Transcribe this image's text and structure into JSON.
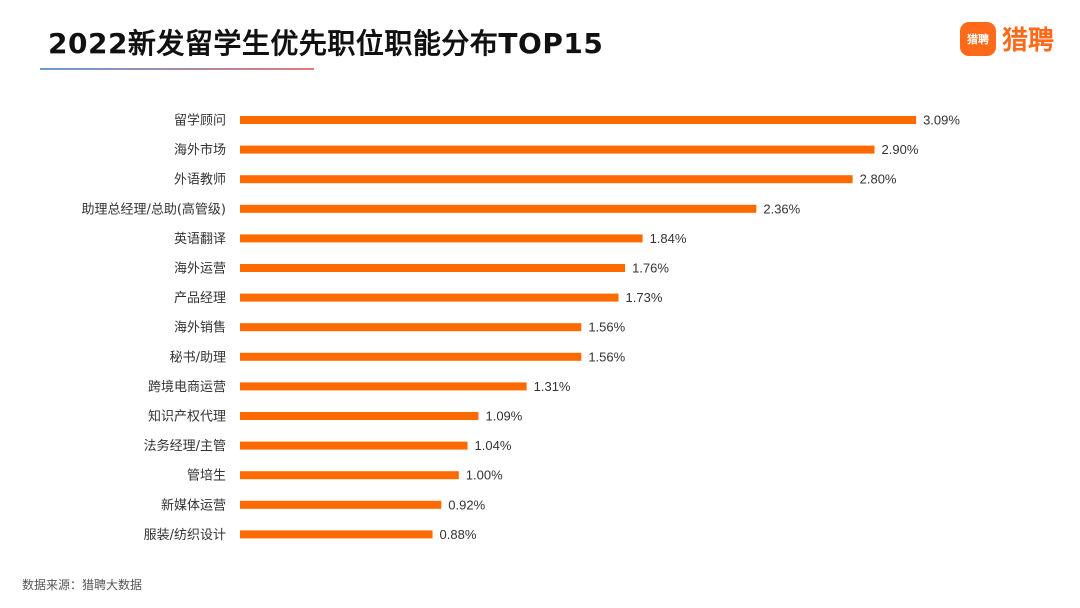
{
  "header": {
    "title": "2022新发留学生优先职位职能分布TOP15",
    "logo_icon_text": "猎聘",
    "logo_text": "猎聘"
  },
  "footer": {
    "source": "数据来源：猎聘大数据"
  },
  "colors": {
    "bar": "#ff6a00",
    "brand": "#ff6a1a"
  },
  "chart_data": {
    "type": "bar",
    "orientation": "horizontal",
    "categories": [
      "留学顾问",
      "海外市场",
      "外语教师",
      "助理总经理/总助(高管级)",
      "英语翻译",
      "海外运营",
      "产品经理",
      "海外销售",
      "秘书/助理",
      "跨境电商运营",
      "知识产权代理",
      "法务经理/主管",
      "管培生",
      "新媒体运营",
      "服装/纺织设计"
    ],
    "values": [
      3.09,
      2.9,
      2.8,
      2.36,
      1.84,
      1.76,
      1.73,
      1.56,
      1.56,
      1.31,
      1.09,
      1.04,
      1.0,
      0.92,
      0.88
    ],
    "value_labels": [
      "3.09%",
      "2.90%",
      "2.80%",
      "2.36%",
      "1.84%",
      "1.76%",
      "1.73%",
      "1.56%",
      "1.56%",
      "1.31%",
      "1.09%",
      "1.04%",
      "1.00%",
      "0.92%",
      "0.88%"
    ],
    "unit": "%",
    "title": "2022新发留学生优先职位职能分布TOP15",
    "xlabel": "",
    "ylabel": "",
    "grid": false,
    "legend": "none"
  }
}
